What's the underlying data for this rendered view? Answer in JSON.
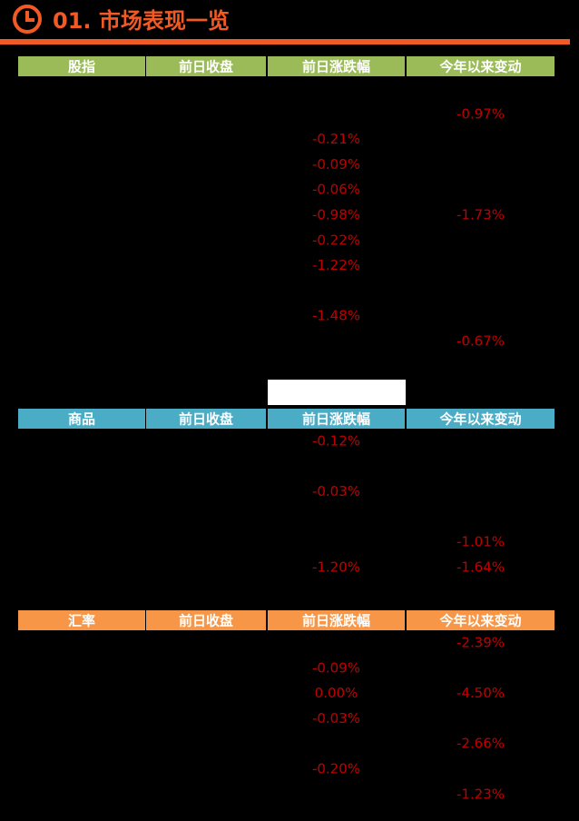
{
  "title": "01. 市场表现一览",
  "sections": [
    {
      "columns": [
        "股指",
        "前日收盘",
        "前日涨跌幅",
        "今年以来变动"
      ],
      "color": "#9bbb59",
      "rows": [
        [
          null,
          null
        ],
        [
          null,
          "-0.97%"
        ],
        [
          "-0.21%",
          null
        ],
        [
          "-0.09%",
          null
        ],
        [
          "-0.06%",
          null
        ],
        [
          "-0.98%",
          "-1.73%"
        ],
        [
          "-0.22%",
          null
        ],
        [
          "-1.22%",
          null
        ],
        [
          null,
          null
        ],
        [
          "-1.48%",
          null
        ],
        [
          null,
          "-0.67%"
        ]
      ]
    },
    {
      "columns": [
        "商品",
        "前日收盘",
        "前日涨跌幅",
        "今年以来变动"
      ],
      "color": "#4bacc6",
      "rows": [
        [
          "-0.12%",
          null
        ],
        [
          null,
          null
        ],
        [
          "-0.03%",
          null
        ],
        [
          null,
          null
        ],
        [
          null,
          "-1.01%"
        ],
        [
          "-1.20%",
          "-1.64%"
        ]
      ]
    },
    {
      "columns": [
        "汇率",
        "前日收盘",
        "前日涨跌幅",
        "今年以来变动"
      ],
      "color": "#f79646",
      "rows": [
        [
          null,
          "-2.39%"
        ],
        [
          "-0.09%",
          null
        ],
        [
          "0.00%",
          "-4.50%"
        ],
        [
          "-0.03%",
          null
        ],
        [
          null,
          "-2.66%"
        ],
        [
          "-0.20%",
          null
        ],
        [
          null,
          "-1.23%"
        ]
      ]
    }
  ]
}
